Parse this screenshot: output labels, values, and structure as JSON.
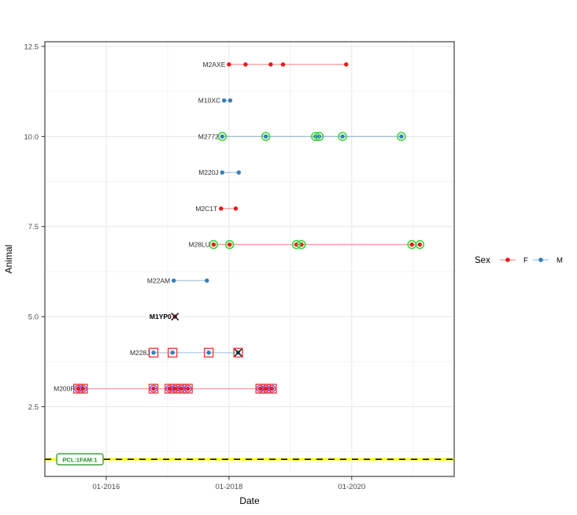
{
  "chart_data": {
    "type": "scatter",
    "title": "",
    "xlabel": "Date",
    "ylabel": "Animal",
    "x_tick_labels": [
      "01-2016",
      "01-2018",
      "01-2020"
    ],
    "x_tick_years": [
      2016,
      2018,
      2020
    ],
    "x_minor_years": [
      2017,
      2019,
      2021
    ],
    "xlim_years": [
      2015.0,
      2021.67
    ],
    "y_tick_labels": [
      "2.5",
      "5.0",
      "7.5",
      "10.0",
      "12.5"
    ],
    "y_ticks": [
      2.5,
      5.0,
      7.5,
      10.0,
      12.5
    ],
    "y_minor": [
      1.25,
      3.75,
      6.25,
      8.75,
      11.25
    ],
    "ylim": [
      0.565,
      12.63
    ],
    "grid": true,
    "legend": {
      "position": "right",
      "title": "Sex",
      "entries": [
        {
          "label": "F",
          "color_key": "female"
        },
        {
          "label": "M",
          "color_key": "male"
        }
      ]
    },
    "reference_line": {
      "y": 1.04,
      "label": "PCL:1FAM:1",
      "style": "yellow solid with black dashes"
    },
    "marker_flag_meaning": {
      "c": "green-circle-outline",
      "s": "red-square-outline",
      "p": "purple-circle-outline",
      "x": "black-x-mark"
    },
    "animals": [
      {
        "label": "M2AXE",
        "y": 12,
        "sex": "F",
        "bold": false,
        "points": [
          {
            "t": 2018.0,
            "flags": ""
          },
          {
            "t": 2018.27,
            "flags": ""
          },
          {
            "t": 2018.68,
            "flags": ""
          },
          {
            "t": 2018.88,
            "flags": ""
          },
          {
            "t": 2019.91,
            "flags": ""
          }
        ]
      },
      {
        "label": "M10XC",
        "y": 11,
        "sex": "M",
        "bold": false,
        "points": [
          {
            "t": 2017.92,
            "flags": ""
          },
          {
            "t": 2018.02,
            "flags": ""
          }
        ]
      },
      {
        "label": "M2772",
        "y": 10,
        "sex": "M",
        "bold": false,
        "points": [
          {
            "t": 2017.89,
            "flags": "c"
          },
          {
            "t": 2018.6,
            "flags": "c"
          },
          {
            "t": 2019.41,
            "flags": "c"
          },
          {
            "t": 2019.47,
            "flags": "c"
          },
          {
            "t": 2019.85,
            "flags": "c"
          },
          {
            "t": 2020.81,
            "flags": "c"
          }
        ]
      },
      {
        "label": "M220J",
        "y": 9,
        "sex": "M",
        "bold": false,
        "points": [
          {
            "t": 2017.89,
            "flags": ""
          },
          {
            "t": 2018.16,
            "flags": ""
          }
        ]
      },
      {
        "label": "M2C1T",
        "y": 8,
        "sex": "F",
        "bold": false,
        "points": [
          {
            "t": 2017.87,
            "flags": ""
          },
          {
            "t": 2018.11,
            "flags": ""
          }
        ]
      },
      {
        "label": "M28LU",
        "y": 7,
        "sex": "F",
        "bold": false,
        "points": [
          {
            "t": 2017.75,
            "flags": "c"
          },
          {
            "t": 2018.01,
            "flags": "c"
          },
          {
            "t": 2019.1,
            "flags": "c"
          },
          {
            "t": 2019.18,
            "flags": "c"
          },
          {
            "t": 2020.98,
            "flags": "c"
          },
          {
            "t": 2021.11,
            "flags": "c"
          }
        ]
      },
      {
        "label": "M22AM",
        "y": 6,
        "sex": "M",
        "bold": false,
        "points": [
          {
            "t": 2017.1,
            "flags": ""
          },
          {
            "t": 2017.64,
            "flags": ""
          }
        ]
      },
      {
        "label": "M1YP0",
        "y": 5,
        "sex": "F",
        "bold": true,
        "points": [
          {
            "t": 2017.12,
            "flags": "x"
          }
        ]
      },
      {
        "label": "M228J",
        "y": 4,
        "sex": "M",
        "bold": false,
        "points": [
          {
            "t": 2016.77,
            "flags": "s"
          },
          {
            "t": 2017.08,
            "flags": "s"
          },
          {
            "t": 2017.67,
            "flags": "s"
          },
          {
            "t": 2018.15,
            "flags": "sx"
          }
        ]
      },
      {
        "label": "M200F",
        "y": 3,
        "sex": "F",
        "bold": false,
        "points": [
          {
            "t": 2015.54,
            "flags": "sp"
          },
          {
            "t": 2015.62,
            "flags": "sp"
          },
          {
            "t": 2016.77,
            "flags": "sp"
          },
          {
            "t": 2017.03,
            "flags": "sp"
          },
          {
            "t": 2017.12,
            "flags": "sp"
          },
          {
            "t": 2017.22,
            "flags": "sp"
          },
          {
            "t": 2017.33,
            "flags": "sp"
          },
          {
            "t": 2018.51,
            "flags": "sp"
          },
          {
            "t": 2018.6,
            "flags": "sp"
          },
          {
            "t": 2018.7,
            "flags": "sp"
          }
        ]
      }
    ],
    "colors": {
      "female": "#e41a1c",
      "male": "#377eb8",
      "circle_green": "#3fd43f",
      "square_red": "#ee4040",
      "circle_purple": "#8f46d8",
      "xmark": "#1a1a1a",
      "hline_yellow": "#ffff00",
      "hline_dash": "#000000",
      "hline_label_green": "#1c8c1c",
      "grid_major": "#e6e6e6",
      "grid_minor": "#f2f2f2",
      "panel_border": "#404040",
      "axis_text": "#4d4d4d",
      "title_text": "#000000",
      "label_text": "#303030"
    }
  }
}
